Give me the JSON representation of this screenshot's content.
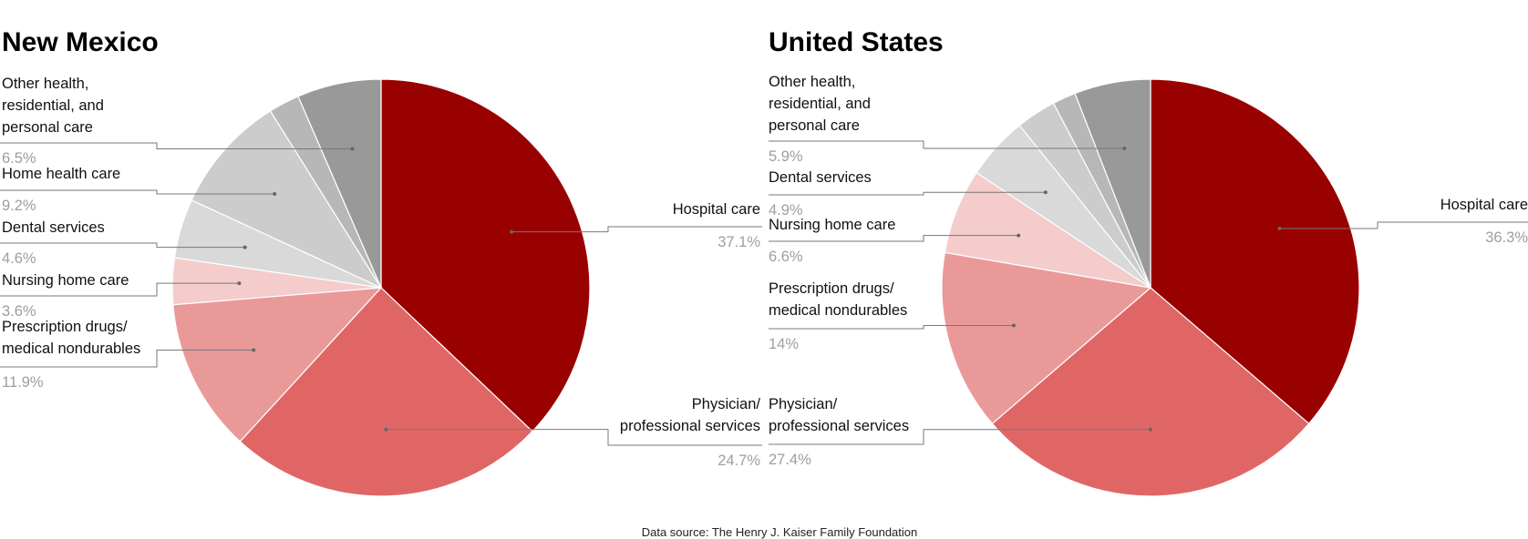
{
  "source": "Data source: The Henry J. Kaiser Family Foundation",
  "chart_data": [
    {
      "type": "pie",
      "title": "New Mexico",
      "slices": [
        {
          "label": "Hospital care",
          "value": 37.1,
          "value_label": "37.1%",
          "color": "#990000"
        },
        {
          "label": "Physician/ professional services",
          "value": 24.7,
          "value_label": "24.7%",
          "color": "#e06666"
        },
        {
          "label": "Prescription drugs/ medical nondurables",
          "value": 11.9,
          "value_label": "11.9%",
          "color": "#ea9999"
        },
        {
          "label": "Nursing home care",
          "value": 3.6,
          "value_label": "3.6%",
          "color": "#f4cccc"
        },
        {
          "label": "Dental services",
          "value": 4.6,
          "value_label": "4.6%",
          "color": "#d9d9d9"
        },
        {
          "label": "Home health care",
          "value": 9.2,
          "value_label": "9.2%",
          "color": "#cccccc"
        },
        {
          "label": "",
          "value": 2.4,
          "value_label": "",
          "color": "#b7b7b7"
        },
        {
          "label": "Other health, residential, and personal care",
          "value": 6.5,
          "value_label": "6.5%",
          "color": "#999999"
        }
      ]
    },
    {
      "type": "pie",
      "title": "United States",
      "slices": [
        {
          "label": "Hospital care",
          "value": 36.3,
          "value_label": "36.3%",
          "color": "#990000"
        },
        {
          "label": "Physician/ professional services",
          "value": 27.4,
          "value_label": "27.4%",
          "color": "#e06666"
        },
        {
          "label": "Prescription drugs/ medical nondurables",
          "value": 14,
          "value_label": "14%",
          "color": "#ea9999"
        },
        {
          "label": "Nursing home care",
          "value": 6.6,
          "value_label": "6.6%",
          "color": "#f4cccc"
        },
        {
          "label": "Dental services",
          "value": 4.9,
          "value_label": "4.9%",
          "color": "#d9d9d9"
        },
        {
          "label": "",
          "value": 3.1,
          "value_label": "",
          "color": "#cccccc"
        },
        {
          "label": "",
          "value": 1.8,
          "value_label": "",
          "color": "#b7b7b7"
        },
        {
          "label": "Other health, residential, and personal care",
          "value": 5.9,
          "value_label": "5.9%",
          "color": "#999999"
        }
      ]
    }
  ]
}
